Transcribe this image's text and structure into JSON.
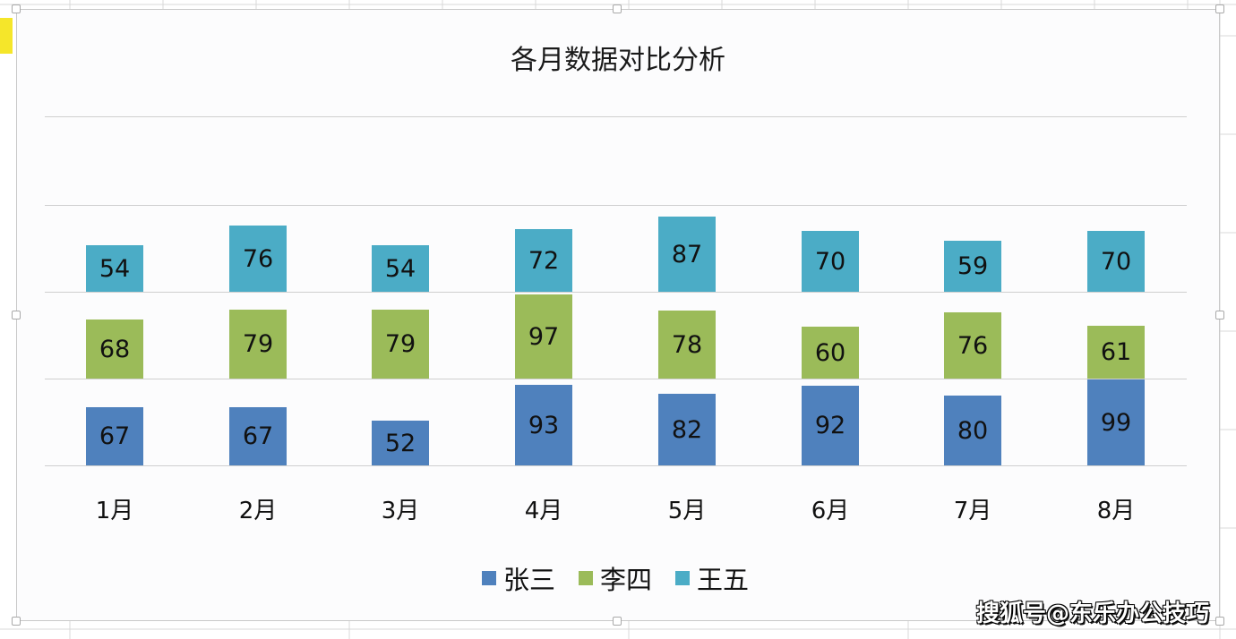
{
  "chart_data": {
    "type": "bar",
    "subtype": "stacked-panel column (each series in its own band)",
    "title": "各月数据对比分析",
    "categories": [
      "1月",
      "2月",
      "3月",
      "4月",
      "5月",
      "6月",
      "7月",
      "8月"
    ],
    "series": [
      {
        "name": "张三",
        "color": "#4f81bd",
        "values": [
          67,
          67,
          52,
          93,
          82,
          92,
          80,
          99
        ]
      },
      {
        "name": "李四",
        "color": "#9bbb59",
        "values": [
          68,
          79,
          79,
          97,
          78,
          60,
          76,
          61
        ]
      },
      {
        "name": "王五",
        "color": "#4bacc6",
        "values": [
          54,
          76,
          54,
          72,
          87,
          70,
          59,
          70
        ]
      }
    ],
    "xlabel": "",
    "ylabel": "",
    "band_range": [
      0,
      100
    ],
    "grid": true,
    "legend_position": "bottom",
    "data_labels": true
  },
  "watermark": "搜狐号@东乐办公技巧"
}
